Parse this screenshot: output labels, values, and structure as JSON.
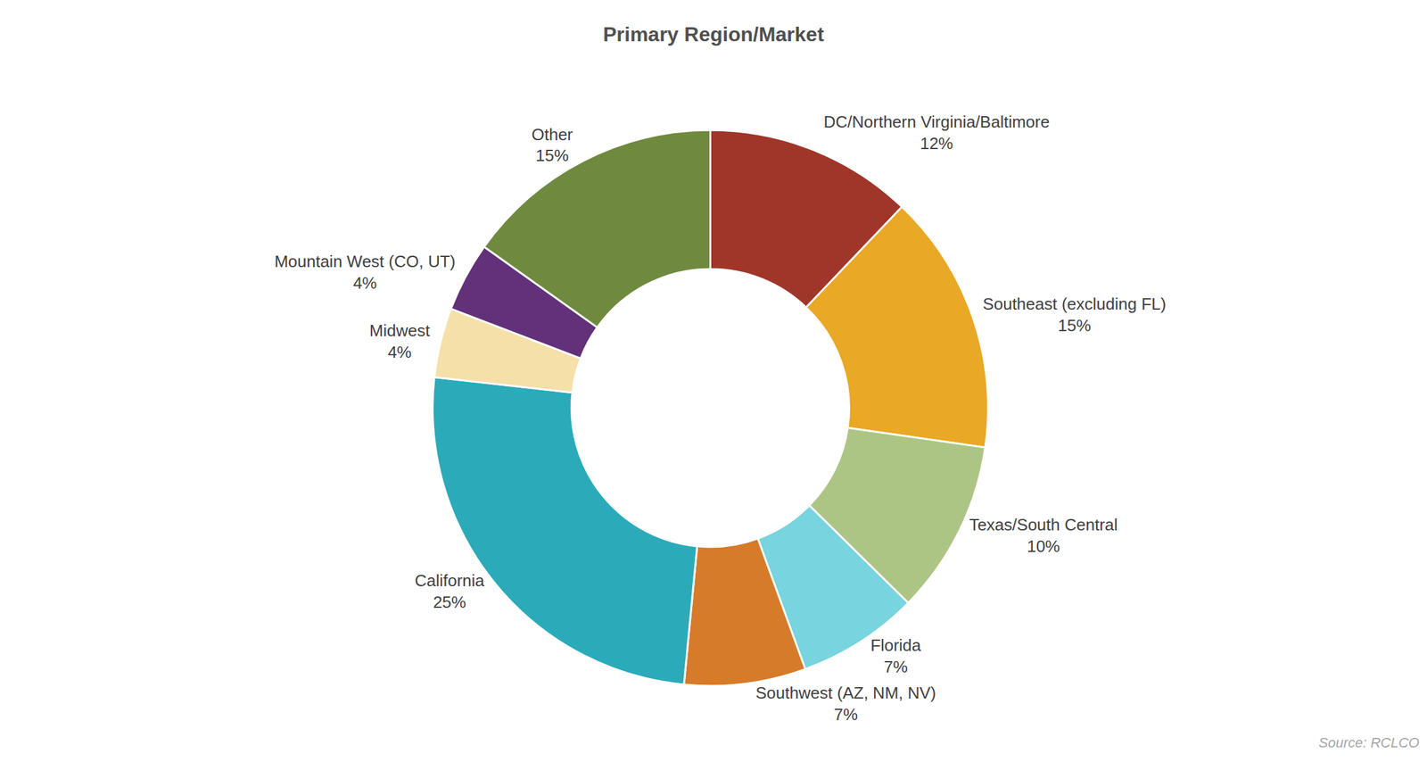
{
  "chart_data": {
    "type": "pie",
    "title": "Primary Region/Market",
    "categories": [
      "DC/Northern Virginia/Baltimore",
      "Southeast (excluding FL)",
      "Texas/South Central",
      "Florida",
      "Southwest (AZ, NM, NV)",
      "California",
      "Midwest",
      "Mountain West (CO, UT)",
      "Other"
    ],
    "values": [
      12,
      15,
      10,
      7,
      7,
      25,
      4,
      4,
      15
    ],
    "value_labels": [
      "12%",
      "15%",
      "10%",
      "7%",
      "7%",
      "25%",
      "4%",
      "4%",
      "15%"
    ],
    "colors": [
      "#A0362A",
      "#E9A825",
      "#ADC584",
      "#78D4DE",
      "#D67B29",
      "#2BAAB9",
      "#F5E0A8",
      "#62317A",
      "#6F8A3F"
    ],
    "data_labels": true,
    "source": "Source: RCLCO"
  }
}
